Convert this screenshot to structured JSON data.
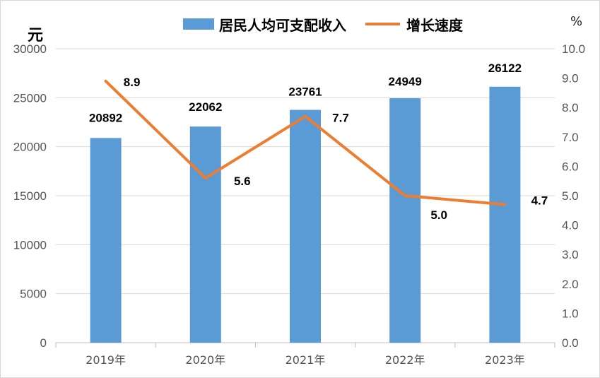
{
  "colors": {
    "bar": "#5b9bd5",
    "line": "#ed7d31",
    "grid": "#d9d9d9",
    "axis": "#bfbfbf"
  },
  "chart_data": {
    "type": "bar",
    "categories": [
      "2019年",
      "2020年",
      "2021年",
      "2022年",
      "2023年"
    ],
    "series": [
      {
        "name": "居民人均可支配收入",
        "type": "bar",
        "axis": "left",
        "values": [
          20892,
          22062,
          23761,
          24949,
          26122
        ]
      },
      {
        "name": "增长速度",
        "type": "line",
        "axis": "right",
        "values": [
          8.9,
          5.6,
          7.7,
          5.0,
          4.7
        ]
      }
    ],
    "ylabel": "元",
    "y2label": "%",
    "ylim": [
      0,
      30000
    ],
    "y2lim": [
      0,
      10
    ],
    "yticks": [
      "0",
      "5000",
      "10000",
      "15000",
      "20000",
      "25000",
      "30000"
    ],
    "y2ticks": [
      "0.0",
      "1.0",
      "2.0",
      "3.0",
      "4.0",
      "5.0",
      "6.0",
      "7.0",
      "8.0",
      "9.0",
      "10.0"
    ],
    "bar_value_labels": [
      "20892",
      "22062",
      "23761",
      "24949",
      "26122"
    ],
    "line_value_labels": [
      "8.9",
      "5.6",
      "7.7",
      "5.0",
      "4.7"
    ],
    "grid": true,
    "legend_position": "top"
  }
}
